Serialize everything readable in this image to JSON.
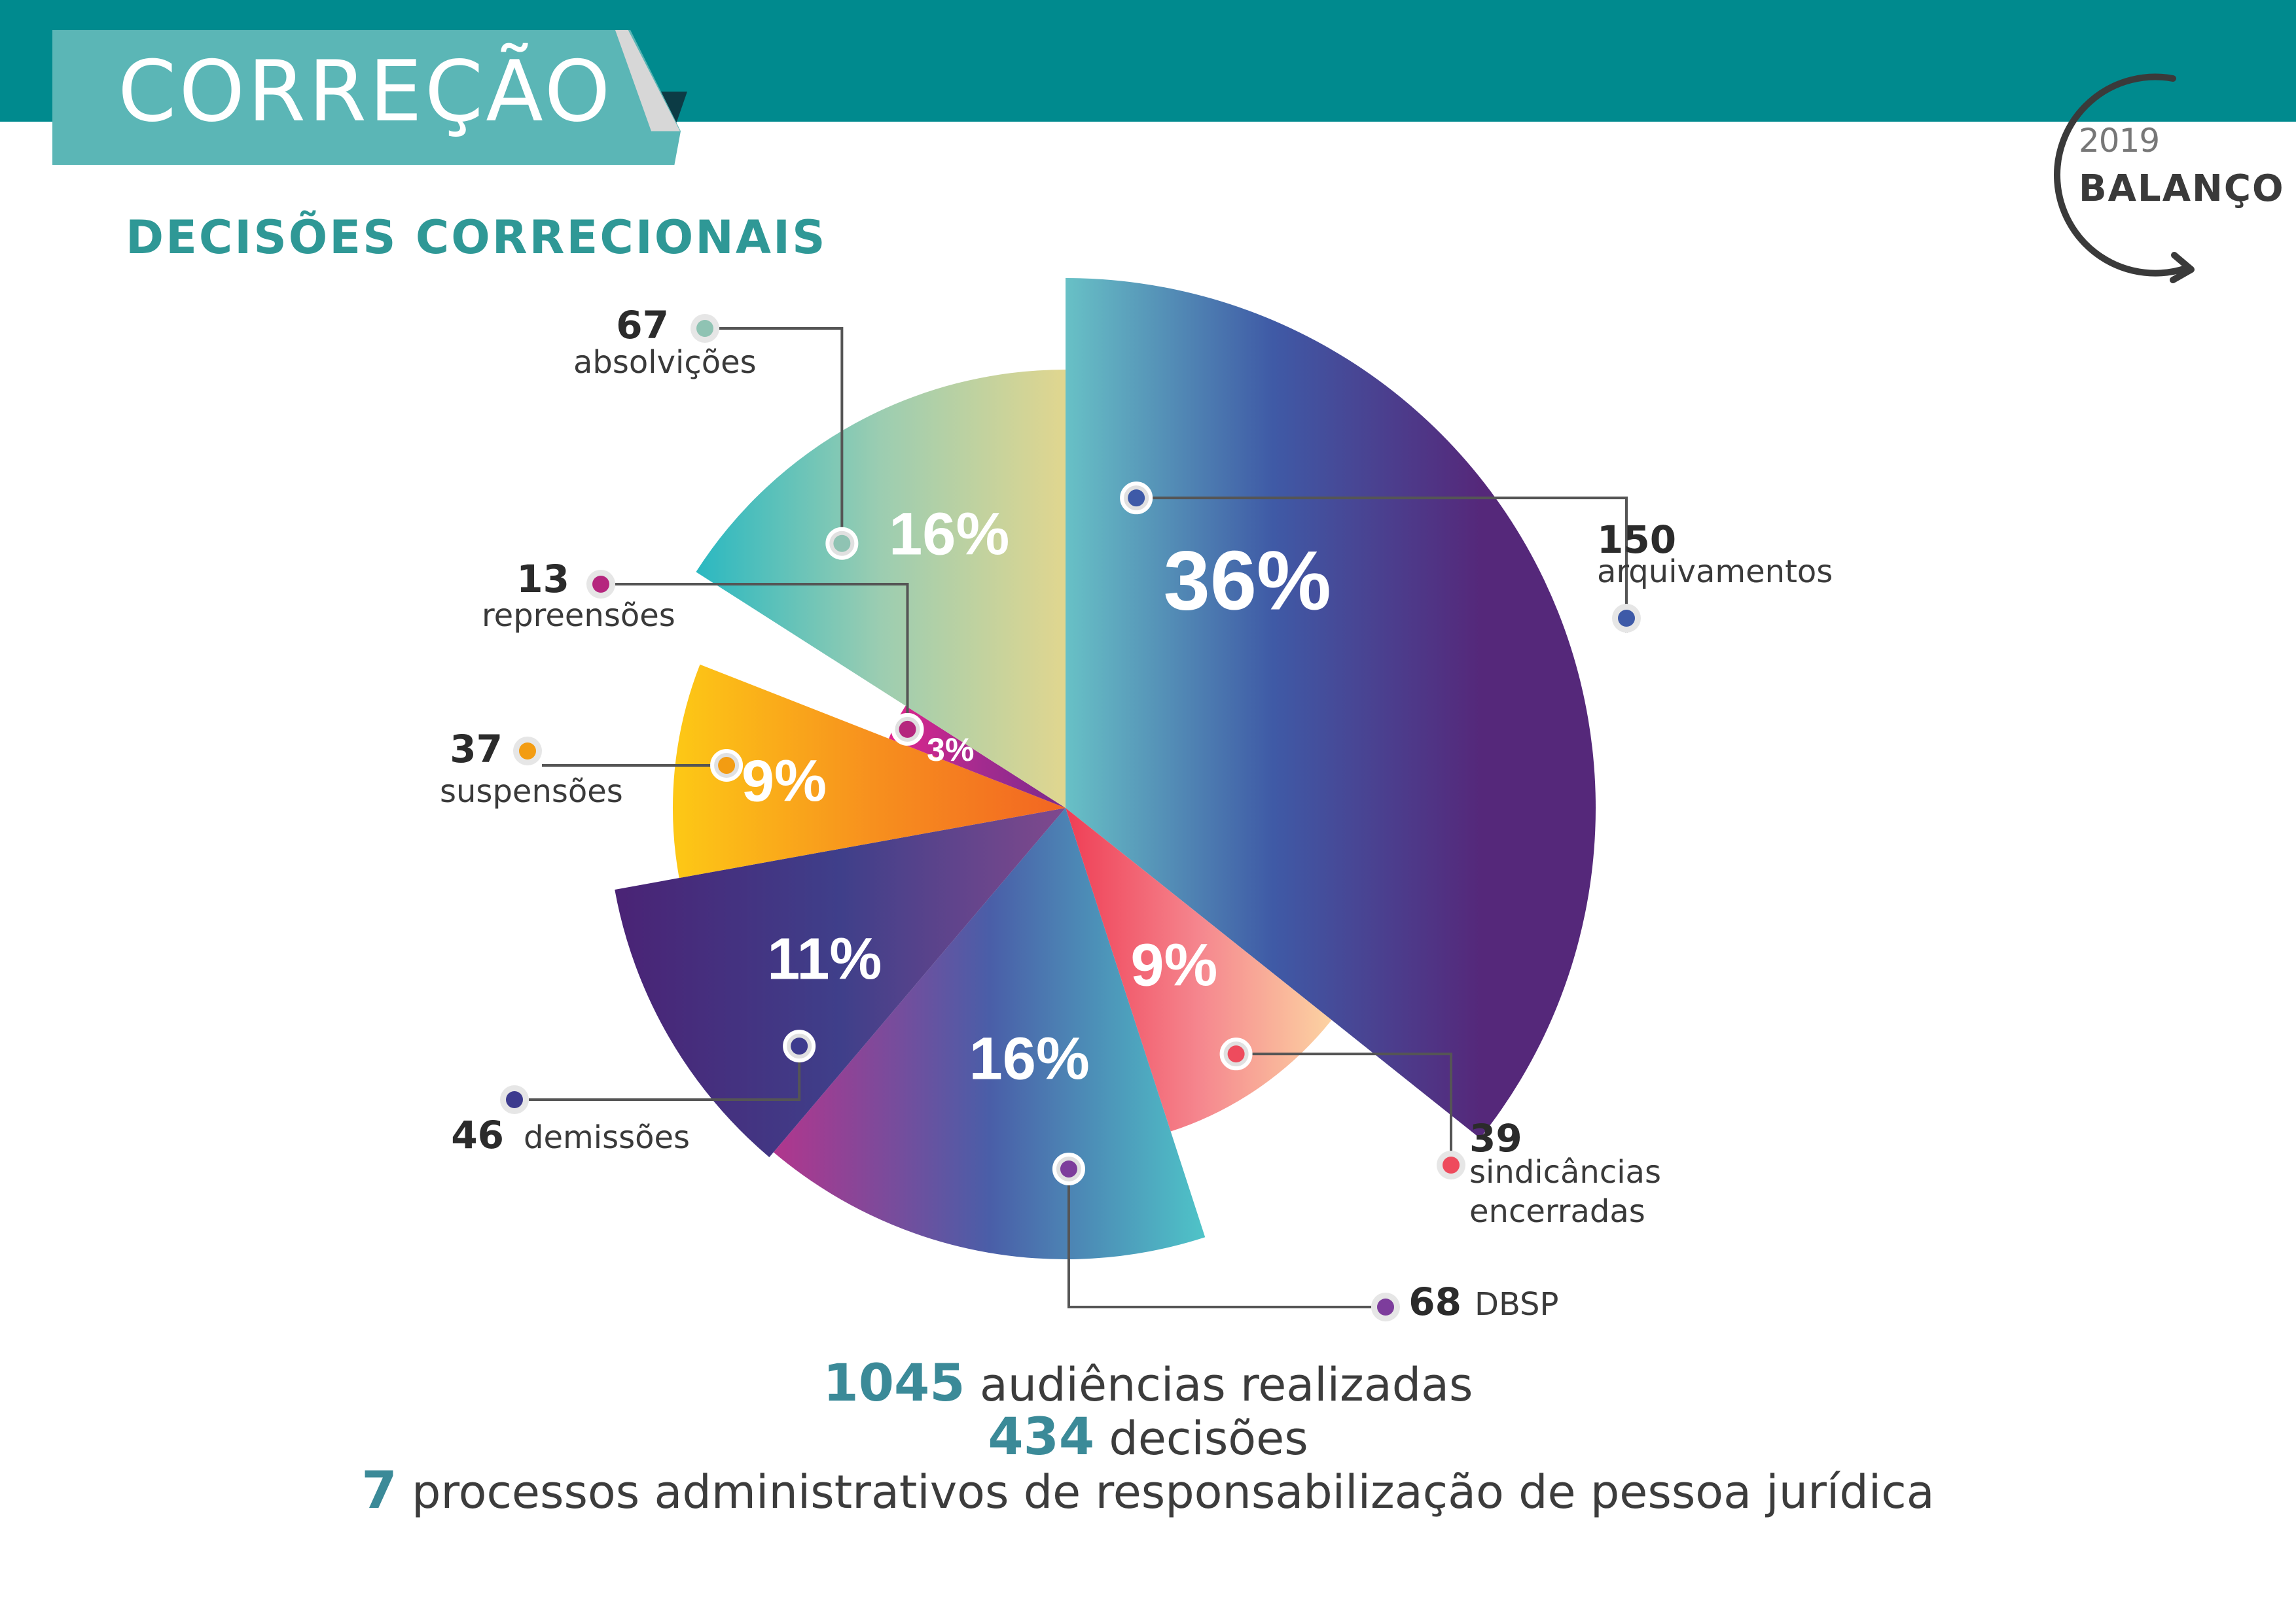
{
  "header": {
    "title": "CORREÇÃO",
    "section_title": "DECISÕES CORRECIONAIS",
    "logo_year": "2019",
    "logo_word": "BALANÇO",
    "bar_color": "#008a8e",
    "tab_color": "#5bb6b6"
  },
  "chart_data": {
    "type": "pie",
    "unit": "decisões",
    "slices": [
      {
        "value": 150,
        "percent_label": "36%",
        "label": "arquivamentos",
        "dot_color": "#3e5aa8",
        "colors": [
          "#68c1c6",
          "#3f5aa6",
          "#55287a"
        ]
      },
      {
        "value": 39,
        "percent_label": "9%",
        "label": "sindicâncias encerradas",
        "dot_color": "#ee4b5d",
        "colors": [
          "#ef3e55",
          "#f5868e",
          "#fcd3a2"
        ]
      },
      {
        "value": 68,
        "percent_label": "16%",
        "label": "DBSP",
        "dot_color": "#7d3d9c",
        "colors": [
          "#b1368d",
          "#4a5ea8",
          "#4fc4c8"
        ]
      },
      {
        "value": 46,
        "percent_label": "11%",
        "label": "demissões",
        "dot_color": "#3d3b8e",
        "colors": [
          "#4a2375",
          "#3f3f8a",
          "#80498d"
        ]
      },
      {
        "value": 37,
        "percent_label": "9%",
        "label": "suspensões",
        "dot_color": "#f39c12",
        "colors": [
          "#fdc716",
          "#f7901e",
          "#f26522"
        ]
      },
      {
        "value": 13,
        "percent_label": "3%",
        "label": "repreensões",
        "dot_color": "#b5267e",
        "colors": [
          "#e0258c",
          "#a52b8f",
          "#7b2a8c"
        ]
      },
      {
        "value": 67,
        "percent_label": "16%",
        "label": "absolvições",
        "dot_color": "#8fc3b3",
        "colors": [
          "#2ab8c1",
          "#9ccdb1",
          "#e1d68f"
        ]
      }
    ]
  },
  "summary": [
    {
      "number": "1045",
      "text": " audiências realizadas"
    },
    {
      "number": "434",
      "text": " decisões"
    },
    {
      "number": "7",
      "text": " processos administrativos de responsabilização de pessoa jurídica"
    }
  ]
}
